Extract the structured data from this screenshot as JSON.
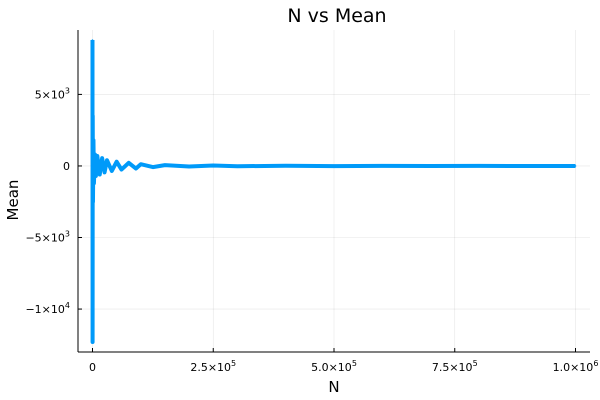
{
  "chart_data": {
    "type": "line",
    "title": "N vs Mean",
    "xlabel": "N",
    "ylabel": "Mean",
    "xlim": [
      -30000,
      1030000
    ],
    "ylim": [
      -13000,
      9500
    ],
    "x_ticks": [
      {
        "value": 0,
        "label": "0"
      },
      {
        "value": 250000,
        "mantissa": "2.5×10",
        "exp": "5"
      },
      {
        "value": 500000,
        "mantissa": "5.0×10",
        "exp": "5"
      },
      {
        "value": 750000,
        "mantissa": "7.5×10",
        "exp": "5"
      },
      {
        "value": 1000000,
        "mantissa": "1.0×10",
        "exp": "6"
      }
    ],
    "y_ticks": [
      {
        "value": 5000,
        "mantissa": "5×10",
        "exp": "3"
      },
      {
        "value": 0,
        "label": "0"
      },
      {
        "value": -5000,
        "mantissa": "−5×10",
        "exp": "3"
      },
      {
        "value": -10000,
        "mantissa": "−1×10",
        "exp": "4"
      }
    ],
    "grid": true,
    "legend": false,
    "series": [
      {
        "color": "#009af9",
        "points": [
          [
            1,
            8800
          ],
          [
            200,
            -12300
          ],
          [
            500,
            3500
          ],
          [
            1000,
            -2500
          ],
          [
            2000,
            1800
          ],
          [
            3000,
            -1200
          ],
          [
            5000,
            800
          ],
          [
            7000,
            -700
          ],
          [
            10000,
            700
          ],
          [
            15000,
            -600
          ],
          [
            20000,
            550
          ],
          [
            25000,
            -450
          ],
          [
            30000,
            400
          ],
          [
            40000,
            -350
          ],
          [
            50000,
            300
          ],
          [
            60000,
            -250
          ],
          [
            75000,
            220
          ],
          [
            90000,
            -180
          ],
          [
            100000,
            120
          ],
          [
            125000,
            -80
          ],
          [
            150000,
            60
          ],
          [
            200000,
            -40
          ],
          [
            250000,
            30
          ],
          [
            300000,
            -20
          ],
          [
            400000,
            15
          ],
          [
            500000,
            -10
          ],
          [
            600000,
            8
          ],
          [
            700000,
            -5
          ],
          [
            800000,
            4
          ],
          [
            900000,
            -3
          ],
          [
            1000000,
            0
          ]
        ]
      }
    ]
  }
}
